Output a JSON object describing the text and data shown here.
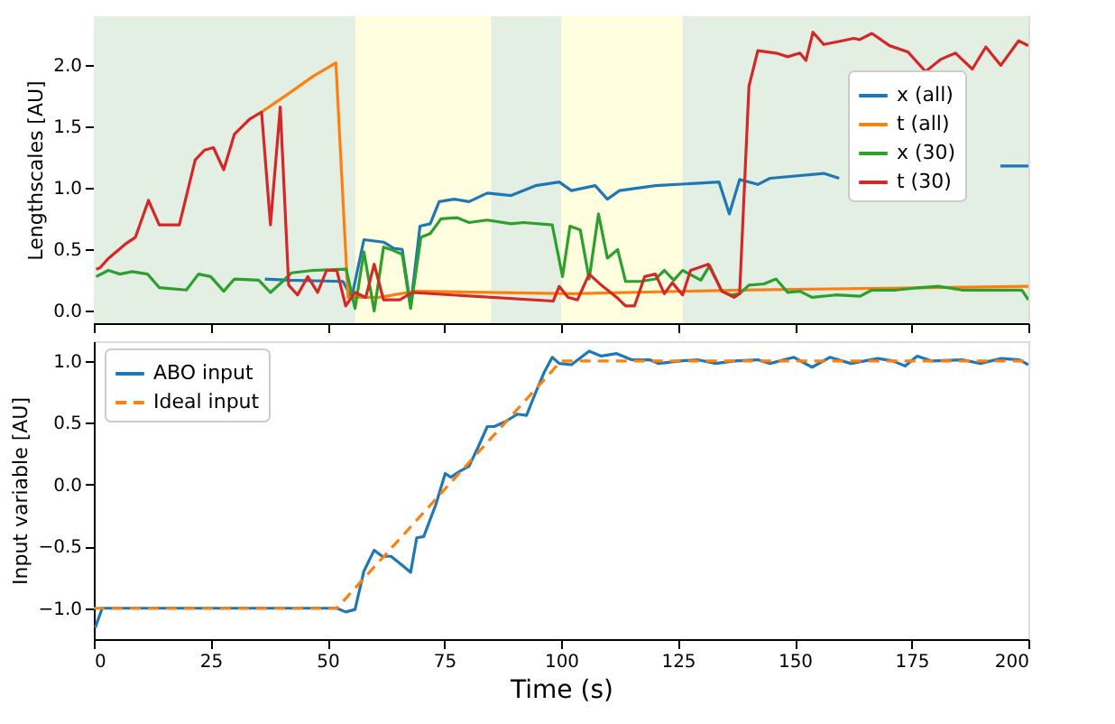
{
  "chart_data": [
    {
      "type": "line",
      "ylabel": "Lengthscales [AU]",
      "xlim": [
        0,
        200
      ],
      "xticks": [
        0,
        25,
        50,
        75,
        100,
        125,
        150,
        175,
        200
      ],
      "ylim": [
        -0.1,
        2.4
      ],
      "yticks": [
        {
          "value": 0,
          "label": "0.0"
        },
        {
          "value": 0.5,
          "label": "0.5"
        },
        {
          "value": 1,
          "label": "1.0"
        },
        {
          "value": 1.5,
          "label": "1.5"
        },
        {
          "value": 2,
          "label": "2.0"
        }
      ],
      "tick_labels": "y",
      "legend": "right",
      "grid": false,
      "line_style": "solid",
      "marker": "none",
      "bands": [
        {
          "axis": "x",
          "from": 0,
          "to": 56,
          "color": "#e4efe4"
        },
        {
          "axis": "x",
          "from": 56,
          "to": 85,
          "color": "#ffffe0"
        },
        {
          "axis": "x",
          "from": 85,
          "to": 100,
          "color": "#e4efe4"
        },
        {
          "axis": "x",
          "from": 100,
          "to": 126,
          "color": "#ffffe0"
        },
        {
          "axis": "x",
          "from": 126,
          "to": 200,
          "color": "#e4efe4"
        }
      ],
      "series": [
        {
          "name": "x (all)",
          "color": "#1f77b4",
          "x": [
            36.6,
            41.7,
            53.3,
            55.2,
            57.8,
            62.0,
            64.2,
            66.0,
            67.8,
            69.8,
            72.0,
            73.9,
            77.1,
            80.3,
            84.2,
            89.3,
            94.5,
            99.6,
            102.2,
            107.3,
            109.9,
            112.5,
            120.2,
            133.8,
            136.0,
            138.2,
            142.1,
            144.7,
            156.2,
            159.5,
            162,
            194,
            200
          ],
          "values": [
            0.26,
            0.25,
            0.24,
            0.11,
            0.58,
            0.56,
            0.51,
            0.5,
            0.04,
            0.69,
            0.71,
            0.89,
            0.91,
            0.89,
            0.96,
            0.94,
            1.02,
            1.05,
            0.98,
            1.02,
            0.91,
            0.98,
            1.02,
            1.05,
            0.79,
            1.07,
            1.03,
            1.08,
            1.12,
            1.08,
            null,
            1.18,
            1.18
          ]
        },
        {
          "name": "t (all)",
          "color": "#ff7f0e",
          "x": [
            35.9,
            41.7,
            46.9,
            51.8,
            54.4,
            61.1,
            68.8,
            102.2,
            138.2,
            200
          ],
          "values": [
            1.62,
            1.77,
            1.91,
            2.02,
            0.11,
            0.11,
            0.16,
            0.14,
            0.17,
            0.2
          ]
        },
        {
          "name": "x (30)",
          "color": "#2ca02c",
          "x": [
            0.5,
            3.1,
            5.6,
            8.2,
            11.5,
            14.0,
            19.8,
            22.4,
            25.0,
            27.8,
            30.1,
            35.3,
            37.8,
            40.4,
            42.3,
            46.9,
            54.0,
            55.9,
            57.8,
            60.0,
            62.0,
            63.6,
            66.0,
            67.8,
            70.0,
            72.0,
            74.3,
            77.7,
            80.3,
            84.2,
            89.3,
            91.9,
            98.1,
            100.3,
            101.9,
            104.1,
            106.0,
            108.0,
            109.9,
            112.1,
            113.8,
            117.0,
            120.2,
            122.1,
            124.1,
            126.0,
            129.9,
            131.8,
            134.4,
            136.3,
            138.2,
            140.2,
            143.4,
            146.0,
            148.5,
            151.1,
            153.7,
            158.8,
            164.0,
            166.5,
            171.7,
            176.8,
            180.7,
            185.8,
            193.5,
            198.6,
            200
          ],
          "values": [
            0.28,
            0.33,
            0.3,
            0.32,
            0.3,
            0.19,
            0.17,
            0.3,
            0.28,
            0.16,
            0.26,
            0.25,
            0.15,
            0.24,
            0.31,
            0.33,
            0.34,
            0.02,
            0.48,
            0.0,
            0.52,
            0.5,
            0.46,
            0.02,
            0.6,
            0.63,
            0.75,
            0.76,
            0.72,
            0.74,
            0.71,
            0.72,
            0.7,
            0.28,
            0.69,
            0.66,
            0.26,
            0.79,
            0.43,
            0.5,
            0.24,
            0.24,
            0.26,
            0.33,
            0.25,
            0.33,
            0.25,
            0.37,
            0.16,
            0.13,
            0.14,
            0.21,
            0.22,
            0.26,
            0.15,
            0.16,
            0.11,
            0.13,
            0.12,
            0.17,
            0.17,
            0.19,
            0.2,
            0.17,
            0.17,
            0.17,
            0.09
          ]
        },
        {
          "name": "t (30)",
          "color": "#d62728",
          "x": [
            0.5,
            1.3,
            3.2,
            6.95,
            8.9,
            11.7,
            14.0,
            18.3,
            21.7,
            23.7,
            25.6,
            27.8,
            30.1,
            33.3,
            35.9,
            37.8,
            39.9,
            41.7,
            43.6,
            45.8,
            47.9,
            49.8,
            52.0,
            53.9,
            55.9,
            58.2,
            60.0,
            62.0,
            65.5,
            68.1,
            98.3,
            99.6,
            101.5,
            103.5,
            106.0,
            108.6,
            111.9,
            113.8,
            115.7,
            117.9,
            120.2,
            122.1,
            123.8,
            126.0,
            127.7,
            131.5,
            134.4,
            137.0,
            138.2,
            140.2,
            142.1,
            146.0,
            148.5,
            151.1,
            152.4,
            153.9,
            156.2,
            160.1,
            162.6,
            163.9,
            166.5,
            170.3,
            174.2,
            178.0,
            181.3,
            184.4,
            188.0,
            190.9,
            194.1,
            197.9,
            200
          ],
          "values": [
            0.34,
            0.35,
            0.43,
            0.55,
            0.6,
            0.9,
            0.7,
            0.7,
            1.23,
            1.31,
            1.33,
            1.15,
            1.44,
            1.56,
            1.62,
            0.7,
            1.66,
            0.21,
            0.13,
            0.28,
            0.15,
            0.33,
            0.33,
            0.04,
            0.15,
            0.11,
            0.38,
            0.09,
            0.09,
            0.15,
            0.08,
            0.2,
            0.11,
            0.09,
            0.3,
            0.21,
            0.11,
            0.04,
            0.04,
            0.28,
            0.3,
            0.14,
            0.23,
            0.13,
            0.33,
            0.38,
            0.16,
            0.11,
            0.14,
            1.83,
            2.12,
            2.1,
            2.07,
            2.1,
            2.04,
            2.27,
            2.17,
            2.2,
            2.22,
            2.21,
            2.26,
            2.16,
            2.11,
            1.95,
            2.05,
            2.1,
            1.97,
            2.15,
            2.0,
            2.2,
            2.16
          ]
        }
      ]
    },
    {
      "type": "line",
      "xlabel": "Time (s)",
      "ylabel": "Input variable [AU]",
      "xlim": [
        0,
        200
      ],
      "xticks": [
        0,
        25,
        50,
        75,
        100,
        125,
        150,
        175,
        200
      ],
      "ylim": [
        -1.25,
        1.16
      ],
      "yticks": [
        {
          "value": -1,
          "label": "−1.0"
        },
        {
          "value": -0.5,
          "label": "−0.5"
        },
        {
          "value": 0,
          "label": "0.0"
        },
        {
          "value": 0.5,
          "label": "0.5"
        },
        {
          "value": 1,
          "label": "1.0"
        }
      ],
      "legend": "top left",
      "grid": false,
      "marker": "none",
      "series": [
        {
          "name": "ABO input",
          "color": "#1f77b4",
          "line_style": "solid",
          "x": [
            0.26,
            1.8,
            52.0,
            53.9,
            55.9,
            57.8,
            60.0,
            61.7,
            63.6,
            65.9,
            67.8,
            69.1,
            70.6,
            73.2,
            75.2,
            76.4,
            78.4,
            80.3,
            82.2,
            84.2,
            85.7,
            88.1,
            90.6,
            92.6,
            94.5,
            96.4,
            98.1,
            99.6,
            102.2,
            106.0,
            108.6,
            111.9,
            115.1,
            118.9,
            120.9,
            125.4,
            129.2,
            133.1,
            137.0,
            142.1,
            144.7,
            149.8,
            153.7,
            157.5,
            162.0,
            167.8,
            171.1,
            173.6,
            176.2,
            179.4,
            185.8,
            189.7,
            194.2,
            198.1,
            200
          ],
          "values": [
            -1.16,
            -1.0,
            -1.0,
            -1.03,
            -1.01,
            -0.7,
            -0.53,
            -0.58,
            -0.58,
            -0.65,
            -0.71,
            -0.43,
            -0.42,
            -0.16,
            0.09,
            0.06,
            0.11,
            0.15,
            0.3,
            0.47,
            0.47,
            0.51,
            0.57,
            0.56,
            0.74,
            0.91,
            1.03,
            0.98,
            0.97,
            1.08,
            1.04,
            1.06,
            1.01,
            1.01,
            0.98,
            1.0,
            1.01,
            0.98,
            1.0,
            1.01,
            0.98,
            1.03,
            0.95,
            1.03,
            0.98,
            1.02,
            1.0,
            0.96,
            1.04,
            1.0,
            1.01,
            0.98,
            1.02,
            1.01,
            0.97
          ]
        },
        {
          "name": "Ideal input",
          "color": "#ff7f0e",
          "line_style": "dashed",
          "x": [
            0,
            52,
            100,
            200
          ],
          "values": [
            -1,
            -1,
            1,
            1
          ]
        }
      ]
    }
  ]
}
